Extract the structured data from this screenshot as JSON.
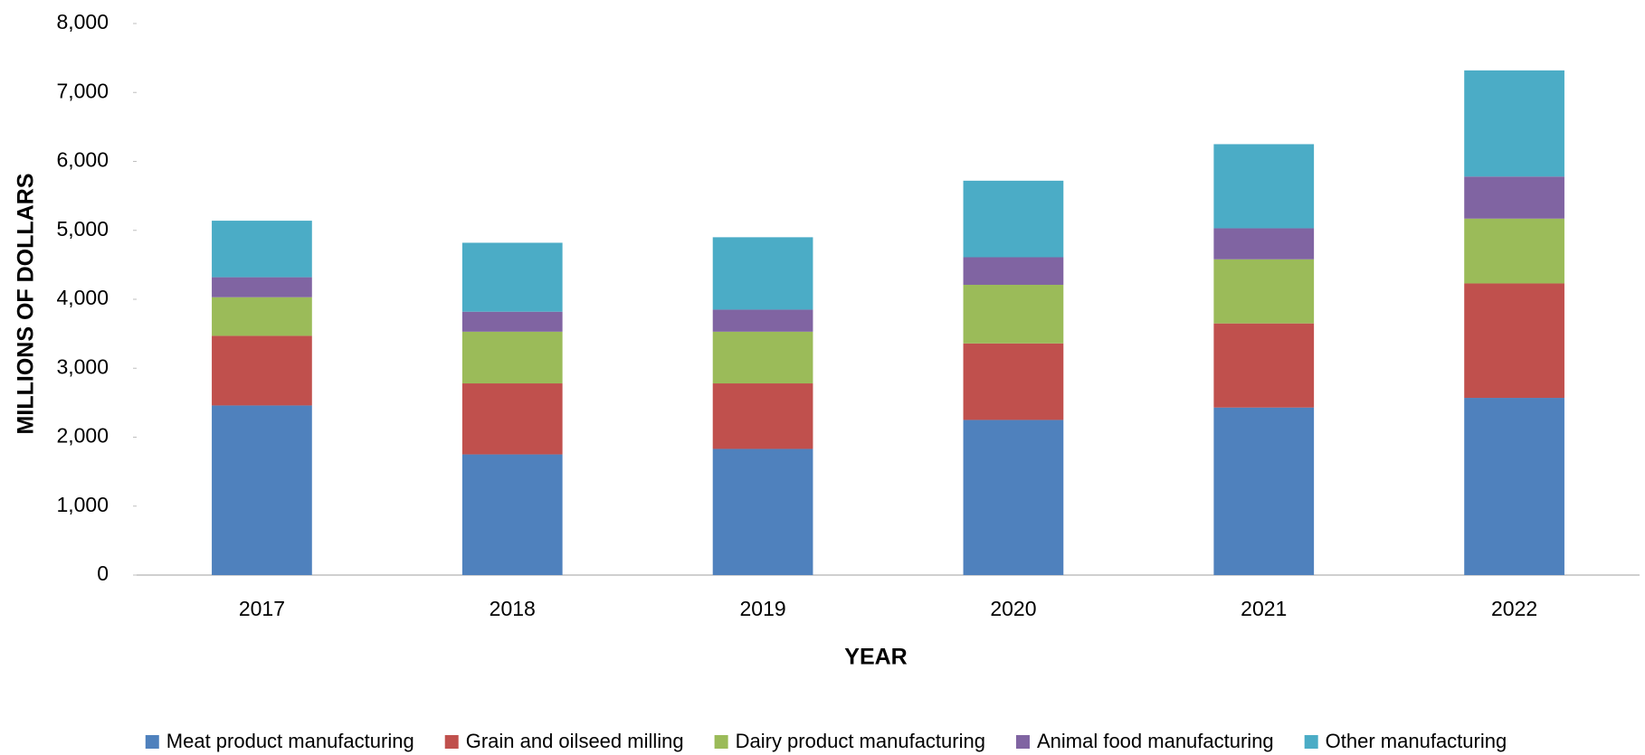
{
  "chart_data": {
    "type": "stacked_bar",
    "x_label": "YEAR",
    "y_label": "MILLIONS OF DOLLARS",
    "categories": [
      "2017",
      "2018",
      "2019",
      "2020",
      "2021",
      "2022"
    ],
    "series": [
      {
        "name": "Meat product manufacturing",
        "color": "#4f81bd",
        "values": [
          2460,
          1750,
          1830,
          2250,
          2430,
          2570
        ]
      },
      {
        "name": "Grain and oilseed milling",
        "color": "#c0504d",
        "values": [
          1010,
          1030,
          950,
          1110,
          1220,
          1660
        ]
      },
      {
        "name": "Dairy product manufacturing",
        "color": "#9bbb59",
        "values": [
          560,
          750,
          750,
          850,
          930,
          940
        ]
      },
      {
        "name": "Animal food manufacturing",
        "color": "#8064a2",
        "values": [
          290,
          290,
          320,
          400,
          450,
          610
        ]
      },
      {
        "name": "Other manufacturing",
        "color": "#4bacc6",
        "values": [
          820,
          1000,
          1050,
          1110,
          1220,
          1540
        ]
      }
    ],
    "ylim": [
      0,
      8000
    ],
    "yticks": [
      0,
      {
        "value": 1000,
        "label": "1,000"
      },
      {
        "value": 2000,
        "label": "2,000"
      },
      {
        "value": 3000,
        "label": "3,000"
      },
      {
        "value": 4000,
        "label": "4,000"
      },
      {
        "value": 5000,
        "label": "5,000"
      },
      {
        "value": 6000,
        "label": "6,000"
      },
      {
        "value": 7000,
        "label": "7,000"
      },
      {
        "value": 8000,
        "label": "8,000"
      }
    ],
    "grid": false,
    "legend": "bottom"
  }
}
